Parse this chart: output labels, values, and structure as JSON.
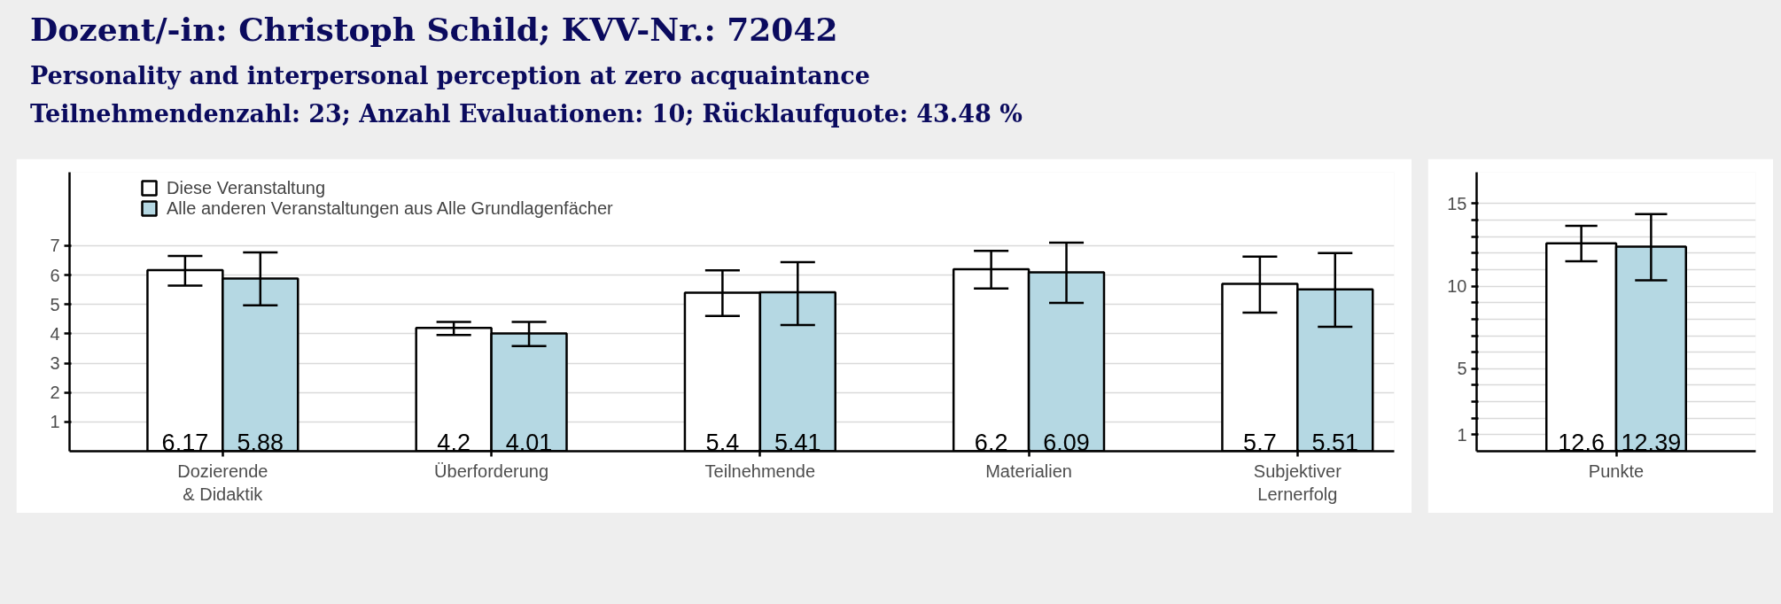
{
  "chart_data": [
    {
      "type": "bar",
      "title": "Dozent/-in: Christoph Schild; KVV-Nr.: 72042",
      "subtitle": "Personality and interpersonal perception at zero acquaintance",
      "annotations": [
        "Teilnehmendenzahl: 23; Anzahl Evaluationen: 10; Rücklaufquote: 43.48 %"
      ],
      "categories": [
        "Dozierende\n& Didaktik",
        "Überforderung",
        "Teilnehmende",
        "Materialien",
        "Subjektiver\nLernerfolg"
      ],
      "series": [
        {
          "name": "Diese Veranstaltung",
          "color": "#ffffff",
          "values": [
            6.17,
            4.2,
            5.4,
            6.2,
            5.7
          ],
          "errors": [
            [
              5.64,
              6.65
            ],
            [
              3.96,
              4.4
            ],
            [
              4.61,
              6.16
            ],
            [
              5.54,
              6.82
            ],
            [
              4.72,
              6.63
            ]
          ]
        },
        {
          "name": "Alle anderen Veranstaltungen aus Alle Grundlagenfächer",
          "color": "#b5d8e3",
          "values": [
            5.88,
            4.01,
            5.41,
            6.09,
            5.51
          ],
          "errors": [
            [
              4.97,
              6.77
            ],
            [
              3.58,
              4.4
            ],
            [
              4.3,
              6.44
            ],
            [
              5.05,
              7.1
            ],
            [
              4.24,
              6.75
            ]
          ]
        }
      ],
      "ylim": [
        0,
        9.5
      ],
      "yticks": [
        1,
        2,
        3,
        4,
        5,
        6,
        7
      ],
      "grid": "y",
      "legend": "top left",
      "data_labels": true
    },
    {
      "type": "bar",
      "categories": [
        "Punkte"
      ],
      "series": [
        {
          "color": "#ffffff",
          "values": [
            12.6
          ],
          "errors": [
            [
              11.51,
              13.66
            ]
          ]
        },
        {
          "color": "#b5d8e3",
          "values": [
            12.39
          ],
          "errors": [
            [
              10.36,
              14.36
            ]
          ]
        }
      ],
      "ylim": [
        0,
        16.9
      ],
      "yticks": [
        1,
        {
          "value": 2,
          "label": null
        },
        {
          "value": 3,
          "label": null
        },
        {
          "value": 4,
          "label": null
        },
        5,
        {
          "value": 6,
          "label": null
        },
        {
          "value": 7,
          "label": null
        },
        {
          "value": 8,
          "label": null
        },
        {
          "value": 9,
          "label": null
        },
        10,
        {
          "value": 11,
          "label": null
        },
        {
          "value": 12,
          "label": null
        },
        {
          "value": 13,
          "label": null
        },
        {
          "value": 14,
          "label": null
        },
        15
      ],
      "grid": "y",
      "data_labels": true
    }
  ]
}
